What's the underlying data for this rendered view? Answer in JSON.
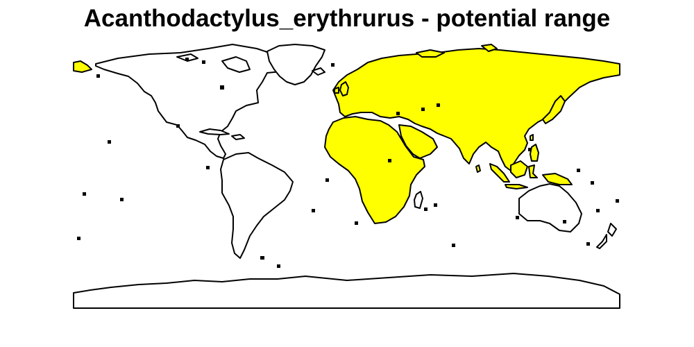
{
  "title": "Acanthodactylus_erythrurus - potential range",
  "colors": {
    "range_fill": "#ffff00",
    "land_fill": "#ffffff",
    "outline": "#000000",
    "background": "#ffffff"
  },
  "legend": "none",
  "regions": [
    {
      "name": "Eurasia",
      "in_range": true
    },
    {
      "name": "Africa",
      "in_range": true
    },
    {
      "name": "Arabian Peninsula",
      "in_range": true
    },
    {
      "name": "Indian Subcontinent",
      "in_range": true
    },
    {
      "name": "Southeast Asia",
      "in_range": true
    },
    {
      "name": "Japan",
      "in_range": true
    },
    {
      "name": "Indonesia",
      "in_range": true
    },
    {
      "name": "Svalbard",
      "in_range": true
    },
    {
      "name": "North America",
      "in_range": false
    },
    {
      "name": "Greenland",
      "in_range": false
    },
    {
      "name": "South America",
      "in_range": false
    },
    {
      "name": "Australia",
      "in_range": false
    },
    {
      "name": "New Zealand",
      "in_range": false
    },
    {
      "name": "Madagascar",
      "in_range": false
    },
    {
      "name": "Antarctica",
      "in_range": false
    }
  ]
}
